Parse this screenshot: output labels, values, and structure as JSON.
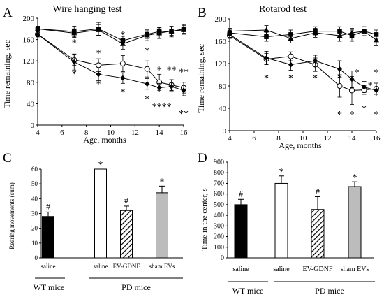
{
  "panels": {
    "A": {
      "letter": "A"
    },
    "B": {
      "letter": "B"
    },
    "C": {
      "letter": "C"
    },
    "D": {
      "letter": "D"
    }
  },
  "group_labels": {
    "wt": "WT mice",
    "pd": "PD mice"
  },
  "chart_data": [
    {
      "id": "A",
      "type": "line",
      "title": "Wire hanging test",
      "xlabel": "Age, months",
      "ylabel": "Time remaining, sec",
      "xlim": [
        4,
        16
      ],
      "ylim": [
        0,
        200
      ],
      "xticks": [
        4,
        6,
        8,
        10,
        12,
        14,
        16
      ],
      "yticks": [
        0,
        40,
        80,
        120,
        160,
        200
      ],
      "x": [
        4,
        7,
        9,
        11,
        13,
        14,
        15,
        16
      ],
      "series": [
        {
          "marker": "square",
          "values": [
            180,
            175,
            180,
            158,
            170,
            175,
            175,
            180
          ],
          "err": [
            5,
            10,
            12,
            8,
            8,
            8,
            10,
            8
          ]
        },
        {
          "marker": "triangle",
          "values": [
            180,
            172,
            178,
            152,
            168,
            172,
            176,
            178
          ],
          "err": [
            5,
            8,
            10,
            10,
            10,
            10,
            8,
            8
          ]
        },
        {
          "marker": "circle-open",
          "values": [
            170,
            122,
            112,
            115,
            105,
            80,
            75,
            70
          ],
          "err": [
            5,
            10,
            12,
            15,
            15,
            15,
            10,
            10
          ]
        },
        {
          "marker": "diamond",
          "values": [
            170,
            118,
            95,
            88,
            77,
            70,
            72,
            65
          ],
          "err": [
            5,
            15,
            12,
            10,
            10,
            8,
            8,
            10
          ]
        }
      ],
      "annotations": [
        {
          "x": 7,
          "y": 155,
          "text": "*"
        },
        {
          "x": 7,
          "y": 97,
          "text": "*"
        },
        {
          "x": 9,
          "y": 135,
          "text": "*"
        },
        {
          "x": 9,
          "y": 78,
          "text": "*"
        },
        {
          "x": 11,
          "y": 170,
          "text": "*"
        },
        {
          "x": 11,
          "y": 63,
          "text": "*"
        },
        {
          "x": 13,
          "y": 140,
          "text": "*"
        },
        {
          "x": 13,
          "y": 50,
          "text": "*"
        },
        {
          "x": 14,
          "y": 104,
          "text": "*"
        },
        {
          "x": 14.2,
          "y": 35,
          "text": "****"
        },
        {
          "x": 15,
          "y": 104,
          "text": "**"
        },
        {
          "x": 16,
          "y": 100,
          "text": "**"
        },
        {
          "x": 16,
          "y": 22,
          "text": "**"
        }
      ]
    },
    {
      "id": "B",
      "type": "line",
      "title": "Rotarod test",
      "xlabel": "Age, months",
      "ylabel": "Time remaining, sec",
      "xlim": [
        4,
        16
      ],
      "ylim": [
        0,
        200
      ],
      "xticks": [
        4,
        6,
        8,
        10,
        12,
        14,
        16
      ],
      "yticks": [
        0,
        40,
        80,
        120,
        160,
        200
      ],
      "x": [
        4,
        7,
        9,
        11,
        13,
        14,
        15,
        16
      ],
      "series": [
        {
          "marker": "square",
          "values": [
            175,
            168,
            172,
            178,
            178,
            170,
            178,
            172
          ],
          "err": [
            5,
            8,
            8,
            8,
            8,
            10,
            8,
            8
          ]
        },
        {
          "marker": "triangle",
          "values": [
            178,
            180,
            165,
            175,
            170,
            175,
            178,
            162
          ],
          "err": [
            5,
            8,
            8,
            8,
            10,
            8,
            8,
            10
          ]
        },
        {
          "marker": "circle-open",
          "values": [
            170,
            128,
            133,
            118,
            80,
            72,
            73,
            75
          ],
          "err": [
            5,
            10,
            8,
            12,
            20,
            25,
            8,
            10
          ]
        },
        {
          "marker": "diamond",
          "values": [
            172,
            130,
            118,
            125,
            110,
            92,
            78,
            72
          ],
          "err": [
            5,
            12,
            10,
            10,
            15,
            15,
            10,
            10
          ]
        }
      ],
      "annotations": [
        {
          "x": 7,
          "y": 95,
          "text": "*"
        },
        {
          "x": 9,
          "y": 95,
          "text": "*"
        },
        {
          "x": 11,
          "y": 95,
          "text": "*"
        },
        {
          "x": 13,
          "y": 95,
          "text": "*"
        },
        {
          "x": 13,
          "y": 30,
          "text": "*"
        },
        {
          "x": 14,
          "y": 30,
          "text": "*"
        },
        {
          "x": 14.4,
          "y": 105,
          "text": "*"
        },
        {
          "x": 15,
          "y": 40,
          "text": "*"
        },
        {
          "x": 15.5,
          "y": 82,
          "text": "*"
        },
        {
          "x": 16,
          "y": 105,
          "text": "*"
        },
        {
          "x": 16,
          "y": 30,
          "text": "*"
        }
      ]
    },
    {
      "id": "C",
      "type": "bar",
      "ylabel": "Rearing movements (sum)",
      "ylim": [
        0,
        60
      ],
      "yticks": [
        0,
        10,
        20,
        30,
        40,
        50,
        60
      ],
      "categories": [
        "saline",
        "saline",
        "EV-GDNF",
        "sham EVs"
      ],
      "values": [
        28,
        60,
        32,
        44
      ],
      "err": [
        3,
        0,
        3,
        4.5
      ],
      "fills": [
        "black",
        "white",
        "hatch",
        "gray"
      ],
      "marks": [
        "#",
        "*",
        "#",
        "*"
      ]
    },
    {
      "id": "D",
      "type": "bar",
      "ylabel": "Time in the center, s",
      "ylim": [
        0,
        900
      ],
      "yticks": [
        0,
        100,
        200,
        300,
        400,
        500,
        600,
        700,
        800,
        900
      ],
      "categories": [
        "saline",
        "saline",
        "EV-GDNF",
        "sham EVs"
      ],
      "values": [
        500,
        700,
        455,
        670
      ],
      "err": [
        50,
        70,
        120,
        45
      ],
      "fills": [
        "black",
        "white",
        "hatch",
        "gray"
      ],
      "marks": [
        "#",
        "*",
        "#",
        "*"
      ]
    }
  ]
}
